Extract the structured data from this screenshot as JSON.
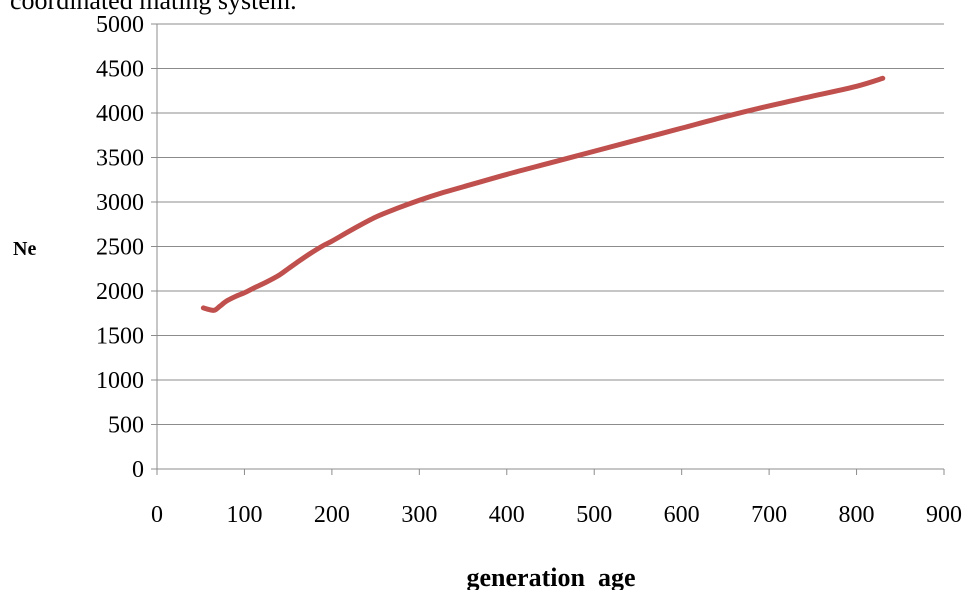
{
  "caption_fragment": "coordinated mating system.",
  "chart_data": {
    "type": "line",
    "title": "",
    "xlabel": "generation  age",
    "ylabel": "Ne",
    "xlim": [
      0,
      900
    ],
    "ylim": [
      0,
      5000
    ],
    "x_ticks": [
      0,
      100,
      200,
      300,
      400,
      500,
      600,
      700,
      800,
      900
    ],
    "y_ticks": [
      0,
      500,
      1000,
      1500,
      2000,
      2500,
      3000,
      3500,
      4000,
      4500,
      5000
    ],
    "grid": "horizontal",
    "legend": "none",
    "series": [
      {
        "color": "#c0504d",
        "x": [
          53,
          60,
          66,
          72,
          80,
          90,
          100,
          110,
          125,
          140,
          150,
          160,
          175,
          190,
          200,
          225,
          250,
          275,
          300,
          325,
          350,
          400,
          450,
          500,
          550,
          600,
          650,
          700,
          750,
          800,
          830
        ],
        "y": [
          1810,
          1790,
          1785,
          1830,
          1890,
          1940,
          1980,
          2030,
          2100,
          2180,
          2250,
          2320,
          2420,
          2510,
          2560,
          2700,
          2830,
          2930,
          3020,
          3100,
          3170,
          3310,
          3440,
          3570,
          3700,
          3830,
          3960,
          4080,
          4190,
          4300,
          4390
        ]
      }
    ]
  }
}
